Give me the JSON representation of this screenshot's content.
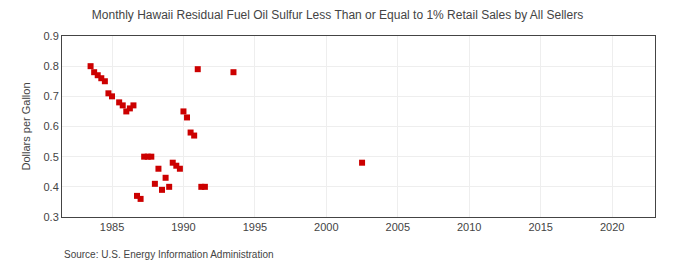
{
  "chart_data": {
    "type": "scatter",
    "title": "Monthly Hawaii Residual Fuel Oil Sulfur Less Than or Equal to 1% Retail Sales by All Sellers",
    "ylabel": "Dollars per Gallon",
    "annotations": [
      {
        "text": "Source: U.S. Energy Information Administration"
      }
    ],
    "x": [
      1983.5,
      1983.75,
      1984.0,
      1984.25,
      1984.5,
      1984.75,
      1985.0,
      1985.5,
      1985.75,
      1986.0,
      1986.25,
      1986.5,
      1986.75,
      1987.0,
      1987.25,
      1987.5,
      1987.75,
      1988.0,
      1988.25,
      1988.5,
      1988.75,
      1989.0,
      1989.25,
      1989.5,
      1989.75,
      1990.0,
      1990.25,
      1990.5,
      1990.75,
      1991.0,
      1991.25,
      1991.5,
      1993.5,
      2002.5
    ],
    "values": [
      0.8,
      0.78,
      0.77,
      0.76,
      0.75,
      0.71,
      0.7,
      0.68,
      0.67,
      0.65,
      0.66,
      0.67,
      0.37,
      0.36,
      0.5,
      0.5,
      0.5,
      0.41,
      0.46,
      0.39,
      0.43,
      0.4,
      0.48,
      0.47,
      0.46,
      0.65,
      0.63,
      0.58,
      0.57,
      0.79,
      0.4,
      0.4,
      0.78,
      0.48
    ],
    "color": "#cc0000",
    "marker": "square",
    "xlim": [
      1981.5,
      2023
    ],
    "ylim": [
      0.3,
      0.9
    ],
    "xticks": [
      1985,
      1990,
      1995,
      2000,
      2005,
      2010,
      2015,
      2020
    ],
    "yticks": [
      0.3,
      0.4,
      0.5,
      0.6,
      0.7,
      0.8,
      0.9
    ],
    "grid": true
  }
}
